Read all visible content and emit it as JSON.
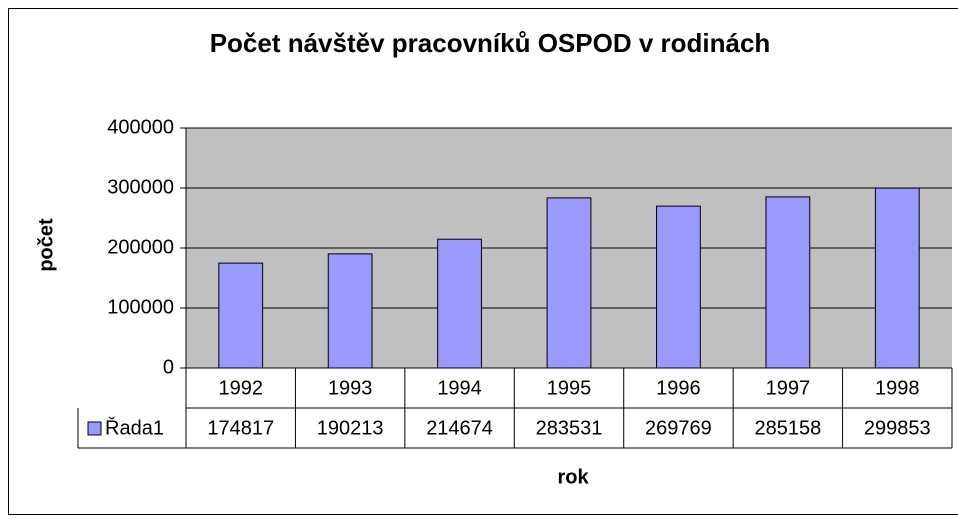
{
  "chart_data": {
    "type": "bar",
    "title": "Počet návštěv pracovníků OSPOD v rodinách",
    "xlabel": "rok",
    "ylabel": "počet",
    "categories": [
      "1992",
      "1993",
      "1994",
      "1995",
      "1996",
      "1997",
      "1998"
    ],
    "series": [
      {
        "name": "Řada1",
        "color": "#9999ff",
        "values": [
          174817,
          190213,
          214674,
          283531,
          269769,
          285158,
          299853
        ]
      }
    ],
    "ylim": [
      0,
      400000
    ],
    "yticks": [
      0,
      100000,
      200000,
      300000,
      400000
    ],
    "grid": true
  }
}
